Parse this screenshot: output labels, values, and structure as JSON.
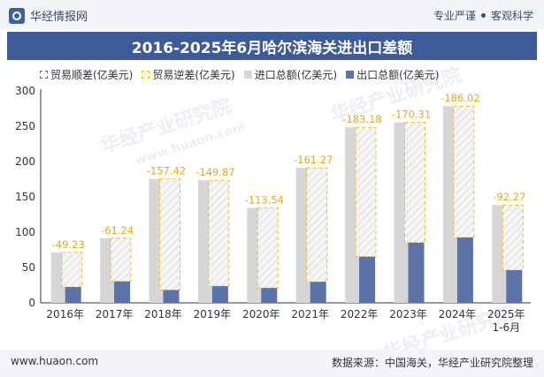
{
  "header": {
    "brand": "华经情报网",
    "tagline_left": "专业严谨",
    "tagline_right": "客观科学"
  },
  "watermark": {
    "text": "华经产业研究院",
    "url": "www.huaon.com"
  },
  "footer": {
    "website": "www.huaon.com",
    "source": "数据来源：中国海关，华经产业研究院整理"
  },
  "chart_data": {
    "type": "bar",
    "title": "2016-2025年6月哈尔滨海关进出口差额",
    "categories": [
      "2016年",
      "2017年",
      "2018年",
      "2019年",
      "2020年",
      "2021年",
      "2022年",
      "2023年",
      "2024年",
      "2025年"
    ],
    "category_sublabels": [
      "",
      "",
      "",
      "",
      "",
      "",
      "",
      "",
      "",
      "1-6月"
    ],
    "ylim": [
      0,
      300
    ],
    "yticks": [
      "0",
      "50",
      "100",
      "150",
      "200",
      "250",
      "300"
    ],
    "legend_placement": "top",
    "series": [
      {
        "name": "贸易顺差(亿美元)",
        "key": "surplus",
        "values": [
          null,
          null,
          null,
          null,
          null,
          null,
          null,
          null,
          null,
          null
        ]
      },
      {
        "name": "贸易逆差(亿美元)",
        "key": "deficit",
        "values": [
          -49.23,
          -61.24,
          -157.42,
          -149.87,
          -113.54,
          -161.27,
          -183.18,
          -170.31,
          -186.02,
          -92.27
        ],
        "labels": [
          "-49.23",
          "-61.24",
          "-157.42",
          "-149.87",
          "-113.54",
          "-161.27",
          "-183.18",
          "-170.31",
          "-186.02",
          "-92.27"
        ]
      },
      {
        "name": "进口总额(亿美元)",
        "key": "import",
        "values": [
          71.5,
          91.5,
          175.5,
          173.5,
          134.5,
          191.0,
          248.5,
          255.5,
          278.5,
          138.5
        ]
      },
      {
        "name": "出口总额(亿美元)",
        "key": "export",
        "values": [
          22.3,
          30.3,
          18.1,
          23.6,
          21.0,
          29.7,
          65.3,
          85.2,
          92.5,
          46.2
        ]
      }
    ],
    "colors": {
      "surplus": "#4a6cb0",
      "deficit": "#f0c020",
      "import": "#d6d6d6",
      "export": "#5b73a8",
      "deficit_label": "#e6a817"
    }
  }
}
